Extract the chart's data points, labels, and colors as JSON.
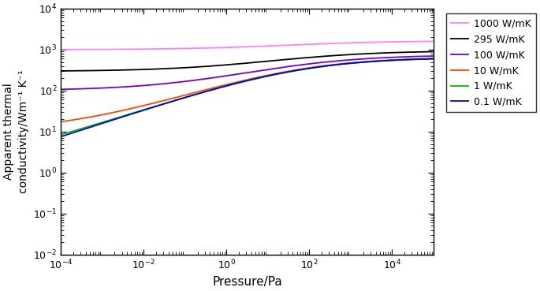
{
  "xlabel": "Pressure/Pa",
  "ylabel": "Apparent thermal\nconductivity/Wm⁻¹ K⁻¹",
  "series": [
    {
      "label": "1000 W/mK",
      "color": "#ff80ff",
      "k_solid": 1000,
      "k_gas_max": 650,
      "tc": 1.8,
      "tw": 1.3
    },
    {
      "label": "295 W/mK",
      "color": "#000000",
      "k_solid": 295,
      "k_gas_max": 650,
      "tc": 1.8,
      "tw": 1.3
    },
    {
      "label": "100 W/mK",
      "color": "#7700cc",
      "k_solid": 100,
      "k_gas_max": 650,
      "tc": 1.8,
      "tw": 1.3
    },
    {
      "label": "10 W/mK",
      "color": "#ff4400",
      "k_solid": 10,
      "k_gas_max": 650,
      "tc": 1.8,
      "tw": 1.3
    },
    {
      "label": "1 W/mK",
      "color": "#00bb00",
      "k_solid": 1,
      "k_gas_max": 650,
      "tc": 1.8,
      "tw": 1.3
    },
    {
      "label": "0.1 W/mK",
      "color": "#0000dd",
      "k_solid": 0.1,
      "k_gas_max": 650,
      "tc": 1.8,
      "tw": 1.3
    }
  ]
}
